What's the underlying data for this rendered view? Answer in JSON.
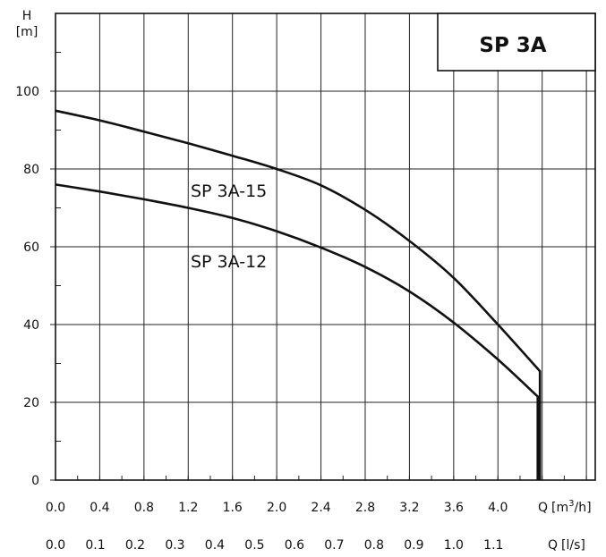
{
  "chart_data": {
    "type": "line",
    "title": "SP 3A",
    "y_axis": {
      "label_symbol": "H",
      "label_unit": "[m]",
      "ylim": [
        0,
        100
      ],
      "ticks": [
        0,
        20,
        40,
        60,
        80,
        100
      ],
      "grid": true
    },
    "x_axis_primary": {
      "label": "Q [m³/h]",
      "label_symbol": "Q",
      "label_unit": "[m³/h]",
      "xlim": [
        0,
        4.88
      ],
      "ticks": [
        "0.0",
        "0.4",
        "0.8",
        "1.2",
        "1.6",
        "2.0",
        "2.4",
        "2.8",
        "3.2",
        "3.6",
        "4.0"
      ]
    },
    "x_axis_secondary": {
      "label": "Q [l/s]",
      "label_symbol": "Q",
      "label_unit": "[l/s]",
      "ticks": [
        "0.0",
        "0.1",
        "0.2",
        "0.3",
        "0.4",
        "0.5",
        "0.6",
        "0.7",
        "0.8",
        "0.9",
        "1.0",
        "1.1"
      ]
    },
    "series": [
      {
        "name": "SP 3A-15",
        "points": [
          [
            0.0,
            95
          ],
          [
            0.4,
            92.5
          ],
          [
            0.8,
            89.6
          ],
          [
            1.2,
            86.6
          ],
          [
            1.6,
            83.4
          ],
          [
            2.0,
            80.0
          ],
          [
            2.4,
            75.8
          ],
          [
            2.8,
            69.5
          ],
          [
            3.2,
            61.5
          ],
          [
            3.6,
            52.0
          ],
          [
            4.0,
            40.0
          ],
          [
            4.38,
            28.0
          ],
          [
            4.38,
            0
          ]
        ]
      },
      {
        "name": "SP 3A-12",
        "points": [
          [
            0.0,
            76
          ],
          [
            0.4,
            74.2
          ],
          [
            0.8,
            72.2
          ],
          [
            1.2,
            70.0
          ],
          [
            1.6,
            67.4
          ],
          [
            2.0,
            64.0
          ],
          [
            2.4,
            59.8
          ],
          [
            2.8,
            54.8
          ],
          [
            3.2,
            48.5
          ],
          [
            3.6,
            40.5
          ],
          [
            4.0,
            31.0
          ],
          [
            4.36,
            21.5
          ],
          [
            4.36,
            0
          ]
        ]
      }
    ],
    "legend": "curve labels placed on the plot"
  }
}
